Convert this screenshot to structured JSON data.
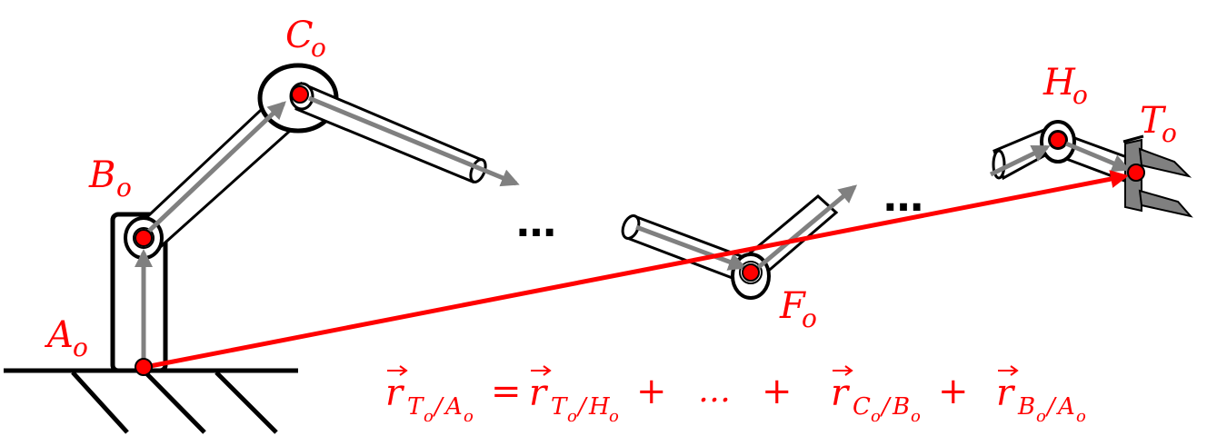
{
  "colors": {
    "accent": "#ff0000",
    "vector": "#808080",
    "outline": "#000000",
    "gripper": "#808080"
  },
  "labels": {
    "A": {
      "base": "A",
      "sub": "o"
    },
    "B": {
      "base": "B",
      "sub": "o"
    },
    "C": {
      "base": "C",
      "sub": "o"
    },
    "F": {
      "base": "F",
      "sub": "o"
    },
    "H": {
      "base": "H",
      "sub": "o"
    },
    "T": {
      "base": "T",
      "sub": "o"
    }
  },
  "ellipsis": {
    "left": "…",
    "right": "…"
  },
  "equation": {
    "lhs_r": "r",
    "lhs_sub_T": "T",
    "lhs_sub_o1": "o",
    "lhs_sub_slash": "/",
    "lhs_sub_A": "A",
    "lhs_sub_o2": "o",
    "eq": "=",
    "t1_r": "r",
    "t1_sub_T": "T",
    "t1_sub_o1": "o",
    "t1_sub_slash": "/",
    "t1_sub_H": "H",
    "t1_sub_o2": "o",
    "plus1": "+",
    "mid_dots": "…",
    "plus2": "+",
    "t2_r": "r",
    "t2_sub_C": "C",
    "t2_sub_o1": "o",
    "t2_sub_slash": "/",
    "t2_sub_B": "B",
    "t2_sub_o2": "o",
    "plus3": "+",
    "t3_r": "r",
    "t3_sub_B": "B",
    "t3_sub_o1": "o",
    "t3_sub_slash": "/",
    "t3_sub_A": "A",
    "t3_sub_o2": "o"
  }
}
